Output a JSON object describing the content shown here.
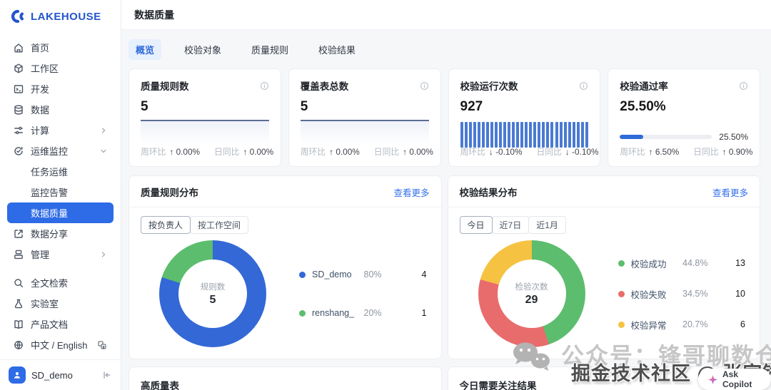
{
  "sidebar": {
    "logo": "LAKEHOUSE",
    "items": [
      {
        "label": "首页",
        "icon": "home"
      },
      {
        "label": "工作区",
        "icon": "workspace-cube"
      },
      {
        "label": "开发",
        "icon": "terminal"
      },
      {
        "label": "数据",
        "icon": "database"
      },
      {
        "label": "计算",
        "icon": "compute",
        "chevron": "right"
      },
      {
        "label": "运维监控",
        "icon": "ops-monitor",
        "chevron": "down"
      },
      {
        "label": "任务运维",
        "indent": true
      },
      {
        "label": "监控告警",
        "indent": true
      },
      {
        "label": "数据质量",
        "indent": true,
        "active": true
      },
      {
        "label": "数据分享",
        "icon": "share"
      },
      {
        "label": "管理",
        "icon": "manage",
        "chevron": "right"
      }
    ],
    "bottom_items": [
      {
        "label": "全文检索",
        "icon": "search"
      },
      {
        "label": "实验室",
        "icon": "flask"
      },
      {
        "label": "产品文档",
        "icon": "book"
      },
      {
        "label": "中文 / English",
        "icon": "globe",
        "badge": "translate"
      }
    ],
    "user": {
      "name": "SD_demo"
    }
  },
  "header": {
    "title": "数据质量"
  },
  "tabs": [
    "概览",
    "校验对象",
    "质量规则",
    "校验结果"
  ],
  "stat_cards": [
    {
      "title": "质量规则数",
      "value": "5",
      "metrics": [
        {
          "label": "周环比",
          "delta": "↑ 0.00%"
        },
        {
          "label": "日同比",
          "delta": "↑ 0.00%"
        }
      ]
    },
    {
      "title": "覆盖表总数",
      "value": "5",
      "metrics": [
        {
          "label": "周环比",
          "delta": "↑ 0.00%"
        },
        {
          "label": "日同比",
          "delta": "↑ 0.00%"
        }
      ]
    },
    {
      "title": "校验运行次数",
      "value": "927",
      "metrics": [
        {
          "label": "周环比",
          "delta": "↓ -0.10%"
        },
        {
          "label": "日同比",
          "delta": "↓ -0.10%"
        }
      ]
    },
    {
      "title": "校验通过率",
      "value": "25.50%",
      "progress_label": "25.50%",
      "metrics": [
        {
          "label": "周环比",
          "delta": "↑ 6.50%"
        },
        {
          "label": "日同比",
          "delta": "↑ 0.90%"
        }
      ]
    }
  ],
  "chart_cards": [
    {
      "title": "质量规则分布",
      "link": "查看更多",
      "segments": [
        "按负责人",
        "按工作空间"
      ],
      "active_segment": 0
    },
    {
      "title": "校验结果分布",
      "link": "查看更多",
      "segments": [
        "今日",
        "近7日",
        "近1月"
      ],
      "active_segment": 0
    }
  ],
  "chart_data": [
    {
      "type": "pie",
      "title": "质量规则分布（按负责人）",
      "center_label": "规则数",
      "center_value": "5",
      "legend_position": "right",
      "slices": [
        {
          "label": "SD_demo",
          "pct": 80,
          "pct_label": "80%",
          "value": 4,
          "color": "#3368d6"
        },
        {
          "label": "renshang_",
          "pct": 20,
          "pct_label": "20%",
          "value": 1,
          "color": "#5cbd6e"
        }
      ]
    },
    {
      "type": "pie",
      "title": "校验结果分布（今日）",
      "center_label": "检验次数",
      "center_value": "29",
      "legend_position": "right",
      "slices": [
        {
          "label": "校验成功",
          "pct": 44.8,
          "pct_label": "44.8%",
          "value": 13,
          "color": "#5cbd6e"
        },
        {
          "label": "校验失败",
          "pct": 34.5,
          "pct_label": "34.5%",
          "value": 10,
          "color": "#e96c6c"
        },
        {
          "label": "校验异常",
          "pct": 20.7,
          "pct_label": "20.7%",
          "value": 6,
          "color": "#f5c242"
        }
      ]
    },
    {
      "type": "bar",
      "title": "校验运行次数迷你柱状图",
      "bar_count": 30,
      "uniform": true,
      "color": "#4a7ad3"
    },
    {
      "type": "progress",
      "title": "校验通过率",
      "value": 25.5,
      "label": "25.50%",
      "color": "#2f6bd8",
      "track_color": "#eceef2"
    },
    {
      "type": "line",
      "title": "质量规则数/覆盖表总数迷你趋势线",
      "trend": "flat",
      "line_color": "#5b6e93",
      "area_color": "#eef2f8"
    }
  ],
  "bottom_cards": [
    {
      "title": "高质量表"
    },
    {
      "title": "今日需要关注结果"
    }
  ],
  "watermarks": {
    "wechat_text": "公众号：锋哥聊数仓",
    "overlay_text": "掘金技术社区 @ 张家锋",
    "copilot_label": "Ask Copilot"
  }
}
